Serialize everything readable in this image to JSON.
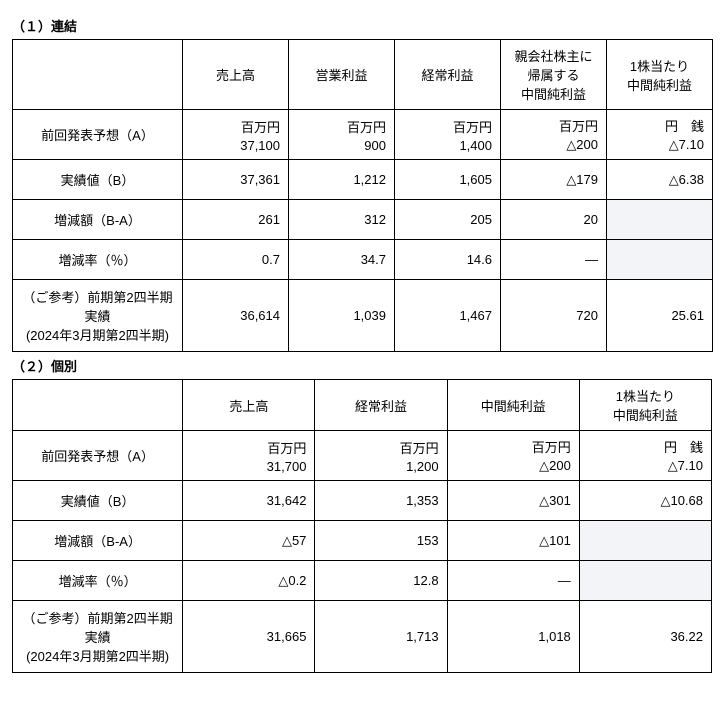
{
  "section1": {
    "title": "（１）連結",
    "columns": [
      "売上高",
      "営業利益",
      "経常利益",
      "親会社株主に帰属する\n中間純利益",
      "1株当たり\n中間純利益"
    ],
    "rows": [
      {
        "label": "前回発表予想（A）",
        "units": [
          "百万円",
          "百万円",
          "百万円",
          "百万円",
          "円　銭"
        ],
        "values": [
          "37,100",
          "900",
          "1,400",
          "△200",
          "△7.10"
        ]
      },
      {
        "label": "実績値（B）",
        "values": [
          "37,361",
          "1,212",
          "1,605",
          "△179",
          "△6.38"
        ]
      },
      {
        "label": "増減額（B-A）",
        "values": [
          "261",
          "312",
          "205",
          "20",
          ""
        ],
        "shaded": [
          false,
          false,
          false,
          false,
          true
        ]
      },
      {
        "label": "増減率（％）",
        "values": [
          "0.7",
          "34.7",
          "14.6",
          "―",
          ""
        ],
        "shaded": [
          false,
          false,
          false,
          false,
          true
        ]
      },
      {
        "label": "（ご参考）前期第2四半期実績\n(2024年3月期第2四半期)",
        "values": [
          "36,614",
          "1,039",
          "1,467",
          "720",
          "25.61"
        ],
        "tall": true
      }
    ]
  },
  "section2": {
    "title": "（２）個別",
    "columns": [
      "売上高",
      "経常利益",
      "中間純利益",
      "1株当たり\n中間純利益"
    ],
    "rows": [
      {
        "label": "前回発表予想（A）",
        "units": [
          "百万円",
          "百万円",
          "百万円",
          "円　銭"
        ],
        "values": [
          "31,700",
          "1,200",
          "△200",
          "△7.10"
        ]
      },
      {
        "label": "実績値（B）",
        "values": [
          "31,642",
          "1,353",
          "△301",
          "△10.68"
        ]
      },
      {
        "label": "増減額（B-A）",
        "values": [
          "△57",
          "153",
          "△101",
          ""
        ],
        "shaded": [
          false,
          false,
          false,
          true
        ]
      },
      {
        "label": "増減率（％）",
        "values": [
          "△0.2",
          "12.8",
          "―",
          ""
        ],
        "shaded": [
          false,
          false,
          false,
          true
        ]
      },
      {
        "label": "（ご参考）前期第2四半期実績\n(2024年3月期第2四半期)",
        "values": [
          "31,665",
          "1,713",
          "1,018",
          "36.22"
        ],
        "tall": true
      }
    ]
  }
}
